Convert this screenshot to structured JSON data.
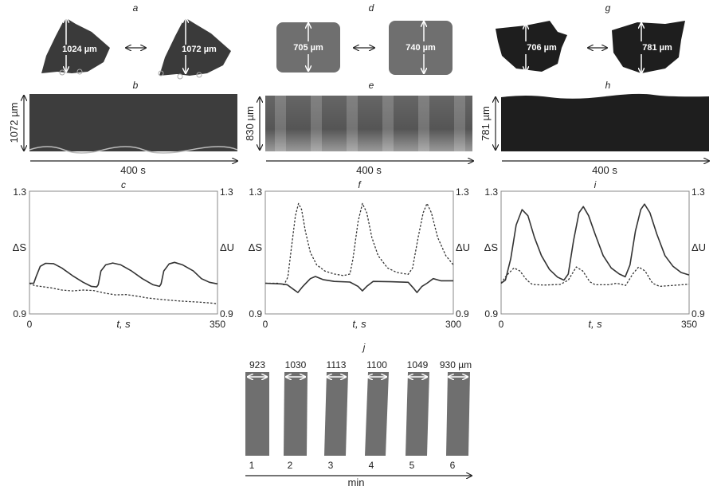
{
  "panels": {
    "a": {
      "letter": "a",
      "left_label": "1024 µm",
      "right_label": "1072 µm"
    },
    "b": {
      "letter": "b",
      "height_label": "1072 µm",
      "time_label": "400 s"
    },
    "d": {
      "letter": "d",
      "left_label": "705 µm",
      "right_label": "740 µm"
    },
    "e": {
      "letter": "e",
      "height_label": "830 µm",
      "time_label": "400 s"
    },
    "g": {
      "letter": "g",
      "left_label": "706 µm",
      "right_label": "781 µm"
    },
    "h": {
      "letter": "h",
      "height_label": "781 µm",
      "time_label": "400 s"
    },
    "j": {
      "letter": "j",
      "widths": [
        "923",
        "1030",
        "1113",
        "1100",
        "1049",
        "930 µm"
      ],
      "indices": [
        "1",
        "2",
        "3",
        "4",
        "5",
        "6"
      ],
      "axis_label": "min"
    }
  },
  "colors": {
    "sample_dark": "#3a3a3a",
    "sample_gray": "#6f6f6f",
    "sample_black": "#1e1e1e",
    "line": "#333333"
  },
  "chart_data": [
    {
      "letter": "c",
      "type": "line",
      "xlabel": "t, s",
      "ylabel_left": "ΔS",
      "ylabel_right": "ΔU",
      "xlim": [
        0,
        350
      ],
      "ylim": [
        0.9,
        1.3
      ],
      "x_ticks": [
        "0",
        "350"
      ],
      "y_ticks": [
        "0.9",
        "1.3"
      ],
      "grid": false,
      "series": [
        {
          "style": "solid",
          "points": [
            [
              0,
              1.0
            ],
            [
              8,
              1.0
            ],
            [
              12,
              1.02
            ],
            [
              20,
              1.055
            ],
            [
              30,
              1.065
            ],
            [
              45,
              1.064
            ],
            [
              60,
              1.05
            ],
            [
              80,
              1.025
            ],
            [
              100,
              1.003
            ],
            [
              115,
              0.99
            ],
            [
              125,
              0.988
            ],
            [
              128,
              0.995
            ],
            [
              133,
              1.04
            ],
            [
              142,
              1.06
            ],
            [
              155,
              1.066
            ],
            [
              170,
              1.06
            ],
            [
              190,
              1.04
            ],
            [
              210,
              1.015
            ],
            [
              230,
              0.995
            ],
            [
              242,
              0.99
            ],
            [
              245,
              0.998
            ],
            [
              250,
              1.04
            ],
            [
              260,
              1.063
            ],
            [
              270,
              1.068
            ],
            [
              285,
              1.06
            ],
            [
              305,
              1.04
            ],
            [
              320,
              1.015
            ],
            [
              335,
              1.003
            ],
            [
              350,
              0.998
            ]
          ]
        },
        {
          "style": "dashed",
          "points": [
            [
              0,
              1.0
            ],
            [
              10,
              0.992
            ],
            [
              20,
              0.99
            ],
            [
              40,
              0.985
            ],
            [
              60,
              0.978
            ],
            [
              80,
              0.975
            ],
            [
              100,
              0.978
            ],
            [
              120,
              0.976
            ],
            [
              140,
              0.968
            ],
            [
              160,
              0.962
            ],
            [
              180,
              0.963
            ],
            [
              200,
              0.958
            ],
            [
              220,
              0.952
            ],
            [
              240,
              0.948
            ],
            [
              260,
              0.945
            ],
            [
              280,
              0.942
            ],
            [
              300,
              0.94
            ],
            [
              320,
              0.938
            ],
            [
              340,
              0.935
            ],
            [
              350,
              0.933
            ]
          ]
        }
      ]
    },
    {
      "letter": "f",
      "type": "line",
      "xlabel": "t, s",
      "ylabel_left": "ΔS",
      "ylabel_right": "ΔU",
      "xlim": [
        0,
        300
      ],
      "ylim": [
        0.9,
        1.3
      ],
      "x_ticks": [
        "0",
        "300"
      ],
      "y_ticks": [
        "0.9",
        "1.3"
      ],
      "grid": false,
      "series": [
        {
          "style": "dashed",
          "points": [
            [
              0,
              1.0
            ],
            [
              20,
              1.0
            ],
            [
              30,
              0.995
            ],
            [
              36,
              1.02
            ],
            [
              42,
              1.12
            ],
            [
              48,
              1.22
            ],
            [
              53,
              1.26
            ],
            [
              58,
              1.24
            ],
            [
              64,
              1.17
            ],
            [
              72,
              1.1
            ],
            [
              82,
              1.06
            ],
            [
              95,
              1.04
            ],
            [
              110,
              1.03
            ],
            [
              125,
              1.025
            ],
            [
              135,
              1.03
            ],
            [
              140,
              1.08
            ],
            [
              148,
              1.2
            ],
            [
              155,
              1.26
            ],
            [
              162,
              1.23
            ],
            [
              170,
              1.15
            ],
            [
              180,
              1.09
            ],
            [
              195,
              1.05
            ],
            [
              210,
              1.035
            ],
            [
              228,
              1.029
            ],
            [
              235,
              1.05
            ],
            [
              244,
              1.15
            ],
            [
              252,
              1.23
            ],
            [
              258,
              1.26
            ],
            [
              265,
              1.23
            ],
            [
              275,
              1.15
            ],
            [
              288,
              1.09
            ],
            [
              300,
              1.06
            ]
          ]
        },
        {
          "style": "solid",
          "points": [
            [
              0,
              1.0
            ],
            [
              25,
              0.998
            ],
            [
              35,
              0.995
            ],
            [
              45,
              0.98
            ],
            [
              52,
              0.97
            ],
            [
              60,
              0.99
            ],
            [
              72,
              1.015
            ],
            [
              80,
              1.022
            ],
            [
              92,
              1.012
            ],
            [
              110,
              1.006
            ],
            [
              135,
              1.004
            ],
            [
              148,
              0.99
            ],
            [
              155,
              0.975
            ],
            [
              162,
              0.99
            ],
            [
              172,
              1.006
            ],
            [
              200,
              1.005
            ],
            [
              228,
              1.003
            ],
            [
              236,
              0.985
            ],
            [
              242,
              0.97
            ],
            [
              250,
              0.99
            ],
            [
              258,
              1.0
            ],
            [
              268,
              1.015
            ],
            [
              280,
              1.008
            ],
            [
              300,
              1.008
            ]
          ]
        }
      ]
    },
    {
      "letter": "i",
      "type": "line",
      "xlabel": "t, s",
      "ylabel_left": "ΔS",
      "ylabel_right": "ΔU",
      "xlim": [
        0,
        350
      ],
      "ylim": [
        0.9,
        1.3
      ],
      "x_ticks": [
        "0",
        "350"
      ],
      "y_ticks": [
        "0.9",
        "1.3"
      ],
      "grid": false,
      "series": [
        {
          "style": "solid",
          "points": [
            [
              0,
              1.0
            ],
            [
              8,
              1.01
            ],
            [
              18,
              1.08
            ],
            [
              28,
              1.19
            ],
            [
              39,
              1.24
            ],
            [
              50,
              1.22
            ],
            [
              62,
              1.15
            ],
            [
              75,
              1.09
            ],
            [
              90,
              1.045
            ],
            [
              105,
              1.02
            ],
            [
              117,
              1.01
            ],
            [
              125,
              1.03
            ],
            [
              135,
              1.14
            ],
            [
              145,
              1.23
            ],
            [
              153,
              1.25
            ],
            [
              163,
              1.22
            ],
            [
              175,
              1.16
            ],
            [
              190,
              1.09
            ],
            [
              205,
              1.05
            ],
            [
              220,
              1.03
            ],
            [
              231,
              1.021
            ],
            [
              240,
              1.06
            ],
            [
              250,
              1.17
            ],
            [
              260,
              1.24
            ],
            [
              267,
              1.258
            ],
            [
              277,
              1.23
            ],
            [
              290,
              1.16
            ],
            [
              305,
              1.09
            ],
            [
              320,
              1.055
            ],
            [
              335,
              1.035
            ],
            [
              350,
              1.027
            ]
          ]
        },
        {
          "style": "dashed",
          "points": [
            [
              0,
              1.0
            ],
            [
              10,
              1.025
            ],
            [
              24,
              1.05
            ],
            [
              35,
              1.04
            ],
            [
              48,
              1.01
            ],
            [
              58,
              0.996
            ],
            [
              80,
              0.994
            ],
            [
              110,
              0.996
            ],
            [
              125,
              1.01
            ],
            [
              140,
              1.053
            ],
            [
              152,
              1.04
            ],
            [
              165,
              1.005
            ],
            [
              175,
              0.995
            ],
            [
              200,
              0.995
            ],
            [
              215,
              1.0
            ],
            [
              232,
              0.993
            ],
            [
              245,
              1.03
            ],
            [
              256,
              1.053
            ],
            [
              268,
              1.04
            ],
            [
              282,
              1.0
            ],
            [
              295,
              0.99
            ],
            [
              320,
              0.993
            ],
            [
              350,
              0.997
            ]
          ]
        }
      ]
    }
  ]
}
